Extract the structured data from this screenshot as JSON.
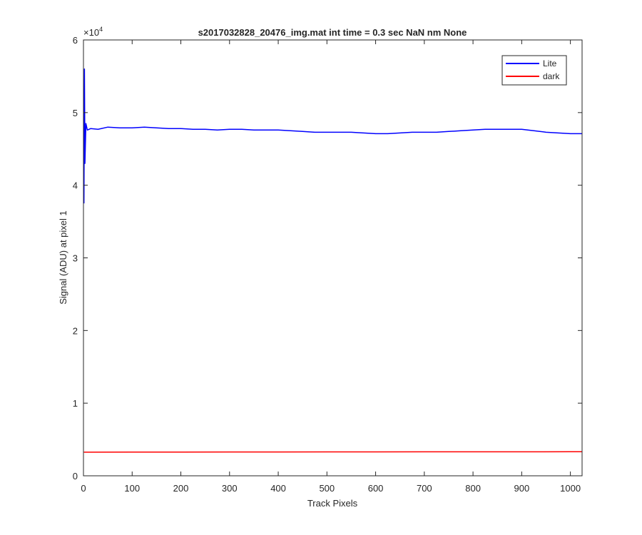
{
  "chart_data": {
    "type": "line",
    "title": "s2017032828_20476_img.mat int time = 0.3 sec  NaN nm None",
    "xlabel": "Track Pixels",
    "ylabel": "Signal (ADU) at pixel 1",
    "xlim": [
      0,
      1024
    ],
    "ylim": [
      0,
      60000
    ],
    "x_ticks": [
      0,
      100,
      200,
      300,
      400,
      500,
      600,
      700,
      800,
      900,
      1000
    ],
    "y_ticks": [
      0,
      1,
      2,
      3,
      4,
      5,
      6
    ],
    "y_exponent_label": "×10",
    "y_exponent_power": "4",
    "grid": false,
    "legend_position": "top-right",
    "series": [
      {
        "name": "Lite",
        "color": "#0000ff",
        "x": [
          1,
          2,
          3,
          5,
          8,
          15,
          30,
          50,
          75,
          100,
          125,
          150,
          175,
          200,
          225,
          250,
          275,
          300,
          325,
          350,
          375,
          400,
          425,
          450,
          475,
          500,
          525,
          550,
          575,
          600,
          625,
          650,
          675,
          700,
          725,
          750,
          775,
          800,
          825,
          850,
          875,
          900,
          925,
          950,
          975,
          1000,
          1024
        ],
        "values": [
          37500,
          56000,
          43000,
          48500,
          47600,
          47800,
          47700,
          48000,
          47900,
          47900,
          48000,
          47900,
          47800,
          47800,
          47700,
          47700,
          47600,
          47700,
          47700,
          47600,
          47600,
          47600,
          47500,
          47400,
          47300,
          47300,
          47300,
          47300,
          47200,
          47100,
          47100,
          47200,
          47300,
          47300,
          47300,
          47400,
          47500,
          47600,
          47700,
          47700,
          47700,
          47700,
          47500,
          47300,
          47200,
          47100,
          47100
        ]
      },
      {
        "name": "dark",
        "color": "#ff0000",
        "x": [
          1,
          100,
          200,
          300,
          400,
          500,
          600,
          700,
          800,
          900,
          1000,
          1024
        ],
        "values": [
          3250,
          3260,
          3270,
          3280,
          3280,
          3290,
          3290,
          3300,
          3300,
          3300,
          3310,
          3310
        ]
      }
    ]
  }
}
